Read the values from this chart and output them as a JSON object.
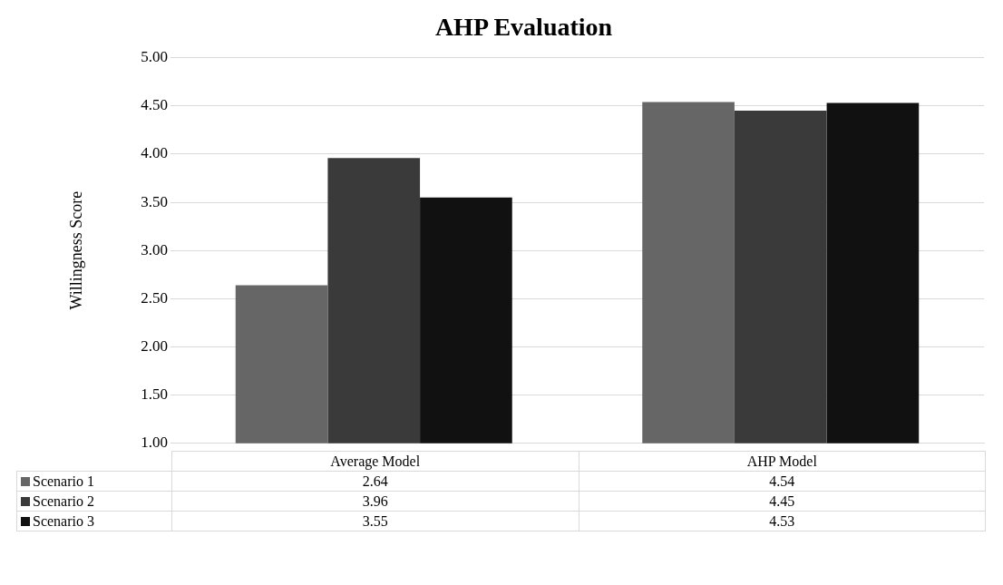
{
  "chart_data": {
    "type": "bar",
    "title": "AHP Evaluation",
    "ylabel": "Willingness Score",
    "categories": [
      "Average Model",
      "AHP Model"
    ],
    "series": [
      {
        "name": "Scenario 1",
        "color": "#666666",
        "values": [
          2.64,
          4.54
        ]
      },
      {
        "name": "Scenario 2",
        "color": "#3a3a3a",
        "values": [
          3.96,
          4.45
        ]
      },
      {
        "name": "Scenario 3",
        "color": "#111111",
        "values": [
          3.55,
          4.53
        ]
      }
    ],
    "ylim": [
      1,
      5
    ],
    "yticks": [
      {
        "value": 1,
        "label": "1.00"
      },
      {
        "value": 1.5,
        "label": "1.50"
      },
      {
        "value": 2,
        "label": "2.00"
      },
      {
        "value": 2.5,
        "label": "2.50"
      },
      {
        "value": 3,
        "label": "3.00"
      },
      {
        "value": 3.5,
        "label": "3.50"
      },
      {
        "value": 4,
        "label": "4.00"
      },
      {
        "value": 4.5,
        "label": "4.50"
      },
      {
        "value": 5,
        "label": "5.00"
      }
    ],
    "grid": "y",
    "legend": "bottom",
    "data_labels": true
  }
}
